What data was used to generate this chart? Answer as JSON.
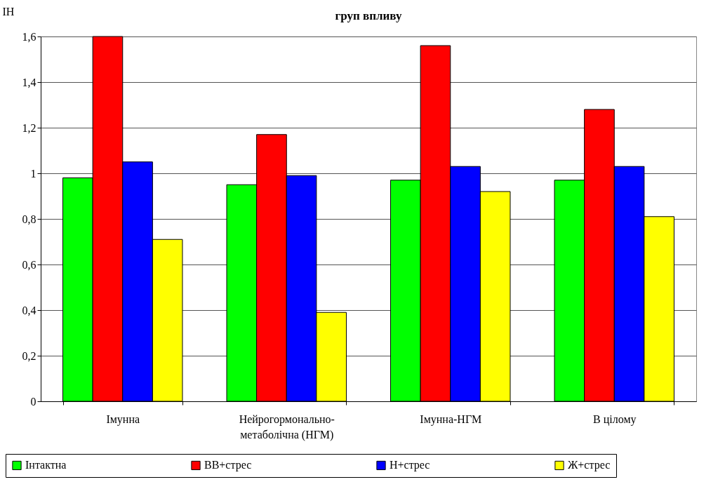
{
  "chart_data": {
    "type": "bar",
    "title": "груп впливу",
    "ylabel": "ІН",
    "categories": [
      "Імунна",
      "Нейрогормонально-\nметаболічна (НГМ)",
      "Імунна-НГМ",
      "В цілому"
    ],
    "series": [
      {
        "name": "Інтактна",
        "color": "#00ff00",
        "values": [
          0.98,
          0.95,
          0.97,
          0.97
        ]
      },
      {
        "name": "ВВ+стрес",
        "color": "#ff0000",
        "values": [
          1.6,
          1.17,
          1.56,
          1.28
        ]
      },
      {
        "name": "Н+стрес",
        "color": "#0000ff",
        "values": [
          1.05,
          0.99,
          1.03,
          1.03
        ]
      },
      {
        "name": "Ж+стрес",
        "color": "#ffff00",
        "values": [
          0.71,
          0.39,
          0.92,
          0.81
        ]
      }
    ],
    "ylim": [
      0,
      1.6
    ],
    "yticks": [
      0,
      {
        "value": 0.2,
        "label": "0,2"
      },
      {
        "value": 0.4,
        "label": "0,4"
      },
      {
        "value": 0.6,
        "label": "0,6"
      },
      {
        "value": 0.8,
        "label": "0,8"
      },
      1,
      {
        "value": 1.2,
        "label": "1,2"
      },
      {
        "value": 1.4,
        "label": "1,4"
      },
      {
        "value": 1.6,
        "label": "1,6"
      }
    ],
    "grid": "y",
    "legend": "bottom"
  }
}
